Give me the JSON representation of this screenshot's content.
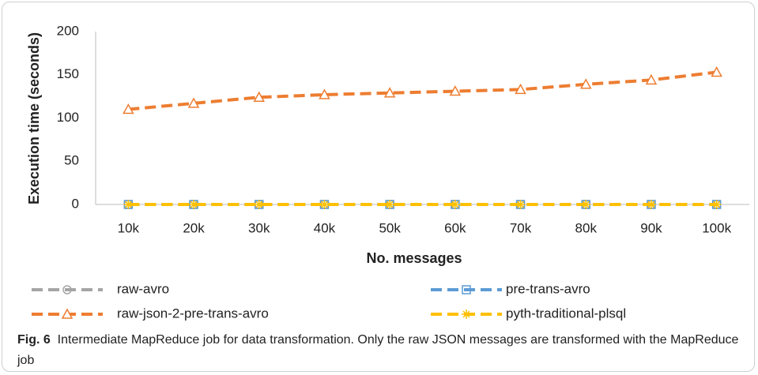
{
  "chart_data": {
    "type": "line",
    "x_label": "No. messages",
    "y_label": "Execution time (seconds)",
    "categories": [
      "10k",
      "20k",
      "30k",
      "40k",
      "50k",
      "60k",
      "70k",
      "80k",
      "90k",
      "100k"
    ],
    "series": [
      {
        "name": "raw-avro",
        "color": "#a5a5a5",
        "marker": "circle",
        "values": [
          0,
          0,
          0,
          0,
          0,
          0,
          0,
          0,
          0,
          0
        ]
      },
      {
        "name": "pre-trans-avro",
        "color": "#5b9bd5",
        "marker": "square",
        "values": [
          0,
          0,
          0,
          0,
          0,
          0,
          0,
          0,
          0,
          0
        ]
      },
      {
        "name": "raw-json-2-pre-trans-avro",
        "color": "#ed7d31",
        "marker": "triangle",
        "values": [
          110,
          117,
          124,
          127,
          129,
          131,
          133,
          139,
          144,
          153
        ]
      },
      {
        "name": "pyth-traditional-plsql",
        "color": "#ffc000",
        "marker": "asterisk",
        "values": [
          0,
          0,
          0,
          0,
          0,
          0,
          0,
          0,
          0,
          0
        ]
      }
    ],
    "ylim": [
      0,
      200
    ],
    "yticks": [
      0,
      50,
      100,
      150,
      200
    ],
    "grid": false
  },
  "caption": {
    "label": "Fig. 6",
    "text": "Intermediate MapReduce job for data transformation. Only the raw JSON messages are transformed with the MapReduce job"
  }
}
